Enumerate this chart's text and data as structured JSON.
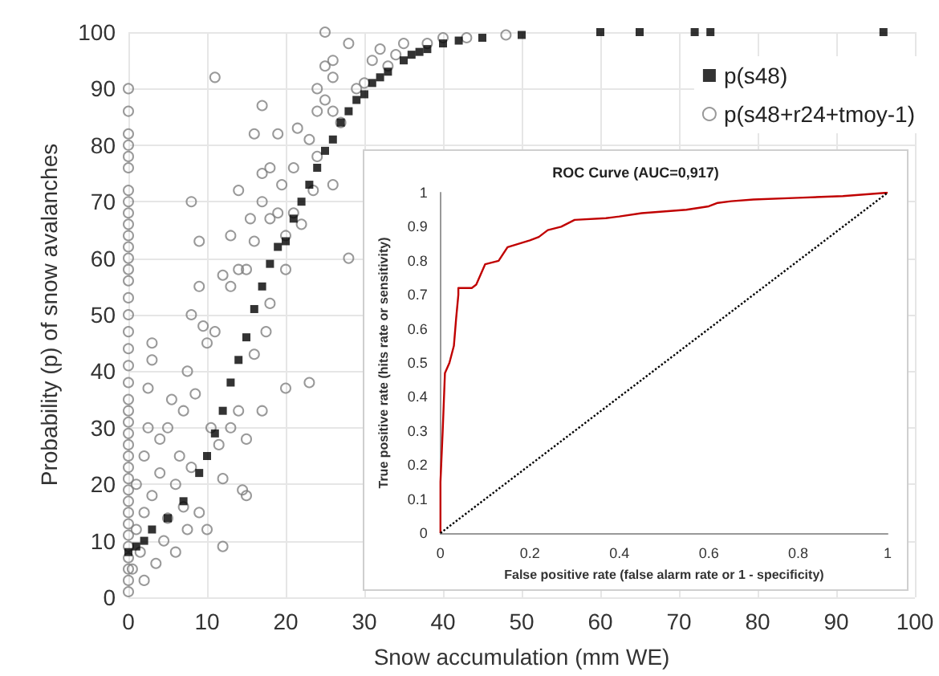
{
  "chart_data": [
    {
      "type": "scatter",
      "xlabel": "Snow accumulation (mm WE)",
      "ylabel": "Probability (p) of snow avalanches",
      "xlim": [
        0,
        100
      ],
      "xticks": [
        0,
        10,
        20,
        30,
        40,
        50,
        60,
        70,
        80,
        90,
        100
      ],
      "ylim": [
        0,
        100
      ],
      "yticks": [
        0,
        10,
        20,
        30,
        40,
        50,
        60,
        70,
        80,
        90,
        100
      ],
      "grid": true,
      "legend": "top right",
      "series": [
        {
          "name": "p(s48)",
          "color": "#000000",
          "marker": "square",
          "x": [
            0,
            1,
            2,
            3,
            5,
            7,
            9,
            10,
            11,
            12,
            13,
            14,
            15,
            16,
            17,
            18,
            19,
            20,
            21,
            22,
            23,
            24,
            25,
            26,
            27,
            28,
            29,
            30,
            31,
            32,
            33,
            35,
            36,
            37,
            38,
            40,
            42,
            45,
            50,
            60,
            65,
            72,
            74,
            96
          ],
          "values": [
            8,
            9,
            10,
            12,
            14,
            17,
            22,
            25,
            29,
            33,
            38,
            42,
            46,
            51,
            55,
            59,
            62,
            63,
            67,
            70,
            73,
            76,
            79,
            81,
            84,
            86,
            88,
            89,
            91,
            92,
            93,
            95,
            96,
            96.5,
            97,
            98,
            98.5,
            99,
            99.5,
            100,
            100,
            100,
            100,
            100
          ]
        },
        {
          "name": "p(s48+r24+tmoy-1)",
          "color": "#808080",
          "marker": "circle",
          "x": [
            0,
            0,
            0,
            0,
            0,
            0,
            0,
            0,
            0,
            0,
            0,
            0,
            0,
            0,
            0,
            0,
            0,
            0,
            0,
            0,
            0,
            0,
            0,
            0,
            0,
            0,
            0,
            0,
            0,
            0,
            0,
            0,
            0,
            0,
            0,
            0,
            0,
            0,
            0,
            0.5,
            1,
            1,
            1.5,
            2,
            2,
            2,
            2.5,
            2.5,
            3,
            3,
            3,
            3.5,
            4,
            4,
            4.5,
            5,
            5,
            5.5,
            6,
            6,
            6.5,
            7,
            7,
            7.5,
            7.5,
            8,
            8,
            8,
            8.5,
            9,
            9,
            9,
            9.5,
            10,
            10,
            10.5,
            11,
            11,
            11.5,
            12,
            12,
            12,
            13,
            13,
            13,
            14,
            14,
            14,
            14.5,
            15,
            15,
            15,
            15.5,
            16,
            16,
            16,
            17,
            17,
            17,
            17,
            17.5,
            18,
            18,
            18,
            19,
            19,
            19.5,
            20,
            20,
            20,
            21,
            21,
            21.5,
            22,
            23,
            23,
            23.5,
            24,
            24,
            24,
            25,
            25,
            25,
            26,
            26,
            26,
            26,
            27,
            28,
            28,
            29,
            30,
            31,
            32,
            33,
            34,
            35,
            38,
            40,
            43,
            48
          ],
          "values": [
            1,
            3,
            5,
            7,
            9,
            11,
            13,
            15,
            17,
            19,
            21,
            23,
            25,
            27,
            29,
            31,
            33,
            35,
            38,
            41,
            44,
            47,
            50,
            53,
            56,
            58,
            60,
            62,
            64,
            66,
            68,
            70,
            72,
            76,
            78,
            80,
            82,
            86,
            90,
            5,
            12,
            20,
            8,
            3,
            15,
            25,
            30,
            37,
            45,
            42,
            18,
            6,
            22,
            28,
            10,
            14,
            30,
            35,
            20,
            8,
            25,
            16,
            33,
            12,
            40,
            70,
            50,
            23,
            36,
            55,
            63,
            15,
            48,
            45,
            12,
            30,
            47,
            92,
            27,
            57,
            9,
            21,
            64,
            30,
            55,
            72,
            58,
            33,
            19,
            58,
            28,
            18,
            67,
            82,
            43,
            63,
            87,
            70,
            75,
            33,
            47,
            67,
            52,
            76,
            82,
            68,
            73,
            37,
            64,
            58,
            76,
            68,
            83,
            66,
            81,
            38,
            72,
            86,
            90,
            78,
            94,
            100,
            88,
            92,
            95,
            73,
            86,
            84,
            60,
            98,
            90,
            91,
            95,
            97,
            94,
            96,
            98,
            98,
            99,
            99,
            99.5
          ]
        }
      ]
    },
    {
      "type": "line",
      "title": "ROC Curve (AUC=0,917)",
      "xlabel": "False positive rate (false alarm rate or 1 - specificity)",
      "ylabel": "True positive rate (hits rate or sensitivity)",
      "xlim": [
        0,
        1
      ],
      "xticks": [
        0,
        0.2,
        0.4,
        0.6,
        0.8,
        1
      ],
      "ylim": [
        0,
        1
      ],
      "yticks": [
        0,
        0.1,
        0.2,
        0.3,
        0.4,
        0.5,
        0.6,
        0.7,
        0.8,
        0.9,
        1
      ],
      "grid": false,
      "legend": false,
      "marker": "none",
      "series": [
        {
          "color": "#c00000",
          "line_style": "solid",
          "x": [
            0,
            0,
            0.005,
            0.01,
            0.02,
            0.03,
            0.035,
            0.04,
            0.04,
            0.07,
            0.08,
            0.1,
            0.13,
            0.15,
            0.2,
            0.22,
            0.24,
            0.27,
            0.3,
            0.37,
            0.4,
            0.45,
            0.55,
            0.6,
            0.62,
            0.65,
            0.7,
            0.8,
            0.9,
            1
          ],
          "values": [
            0,
            0.15,
            0.3,
            0.47,
            0.5,
            0.55,
            0.63,
            0.7,
            0.72,
            0.72,
            0.73,
            0.79,
            0.8,
            0.84,
            0.86,
            0.87,
            0.89,
            0.9,
            0.92,
            0.925,
            0.93,
            0.94,
            0.95,
            0.96,
            0.97,
            0.975,
            0.98,
            0.985,
            0.99,
            1
          ]
        },
        {
          "color": "#000000",
          "line_style": "dotted",
          "x": [
            0,
            1
          ],
          "values": [
            0,
            1
          ]
        }
      ]
    }
  ]
}
